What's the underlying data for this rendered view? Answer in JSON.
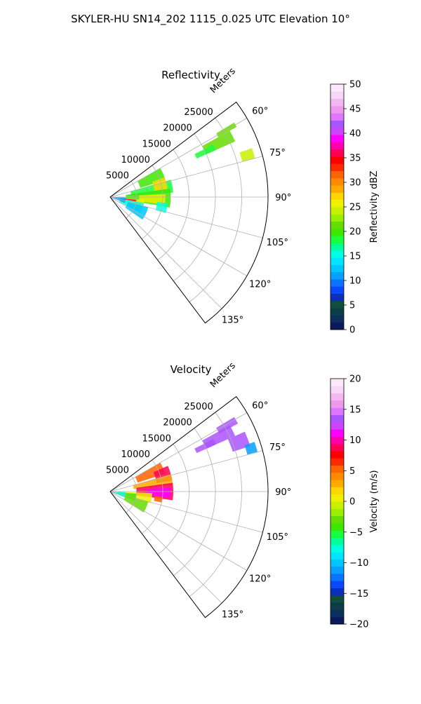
{
  "suptitle": "SKYLER-HU  SN14_202  1115_0.025 UTC Elevation 10°",
  "chart_data": [
    {
      "type": "heatmap",
      "projection": "polar-sector",
      "title": "Reflectivity",
      "radial_label": "Meters",
      "radial_ticks": [
        "5000",
        "10000",
        "15000",
        "20000",
        "25000"
      ],
      "radial_tick_values": [
        5000,
        10000,
        15000,
        20000,
        25000
      ],
      "rlim": [
        0,
        30000
      ],
      "angle_ticks": [
        "60°",
        "75°",
        "90°",
        "105°",
        "120°",
        "135°"
      ],
      "angle_tick_values": [
        60,
        75,
        90,
        105,
        120,
        135
      ],
      "theta_range": [
        53,
        143
      ],
      "grid": true,
      "colorbar": {
        "label": "Reflectivity dBZ",
        "vmin": 0,
        "vmax": 50,
        "ticks": [
          "0",
          "5",
          "10",
          "15",
          "20",
          "25",
          "30",
          "35",
          "40",
          "45",
          "50"
        ],
        "tick_values": [
          0,
          5,
          10,
          15,
          20,
          25,
          30,
          35,
          40,
          45,
          50
        ],
        "palette": [
          "#0a1a5a",
          "#0b2f5f",
          "#0d3d46",
          "#114e3c",
          "#0b2fb8",
          "#0a48ff",
          "#0a74ff",
          "#06a0ff",
          "#00c6ff",
          "#00e6ff",
          "#00ffe0",
          "#00ff9a",
          "#1aff3c",
          "#3ee600",
          "#66dd00",
          "#9aee00",
          "#c8f000",
          "#f0f000",
          "#ffd700",
          "#ffaa00",
          "#ff8a00",
          "#ff6200",
          "#ff2a00",
          "#ff0000",
          "#ff0055",
          "#ff00aa",
          "#ff00ff",
          "#cc44ff",
          "#aa55ff",
          "#dd77ff",
          "#ee99ee",
          "#f2b8f2",
          "#f7d6f7",
          "#fde8fd"
        ]
      },
      "echo_regions": [
        {
          "theta": [
            61,
            66
          ],
          "r": [
            20000,
            26000
          ],
          "value": 21
        },
        {
          "theta": [
            63,
            66
          ],
          "r": [
            18000,
            22000
          ],
          "value": 18
        },
        {
          "theta": [
            59,
            61
          ],
          "r": [
            23500,
            27500
          ],
          "value": 22
        },
        {
          "theta": [
            71,
            75
          ],
          "r": [
            26000,
            28500
          ],
          "value": 24
        },
        {
          "theta": [
            60,
            73
          ],
          "r": [
            6000,
            11000
          ],
          "value": 20
        },
        {
          "theta": [
            74,
            86
          ],
          "r": [
            4000,
            12000
          ],
          "value": 18
        },
        {
          "theta": [
            70,
            82
          ],
          "r": [
            8500,
            11000
          ],
          "value": 27
        },
        {
          "theta": [
            82,
            100
          ],
          "r": [
            3000,
            11500
          ],
          "value": 20
        },
        {
          "theta": [
            87,
            98
          ],
          "r": [
            5500,
            10500
          ],
          "value": 26
        },
        {
          "theta": [
            95,
            105
          ],
          "r": [
            2000,
            6500
          ],
          "value": 25
        },
        {
          "theta": [
            96,
            100
          ],
          "r": [
            2500,
            5000
          ],
          "value": 36
        },
        {
          "theta": [
            100,
            118
          ],
          "r": [
            2000,
            6500
          ],
          "value": 15
        },
        {
          "theta": [
            105,
            125
          ],
          "r": [
            3500,
            7500
          ],
          "value": 13
        },
        {
          "theta": [
            92,
            112
          ],
          "r": [
            0,
            3000
          ],
          "value": 11
        },
        {
          "theta": [
            96,
            106
          ],
          "r": [
            9000,
            11000
          ],
          "value": 15
        }
      ]
    },
    {
      "type": "heatmap",
      "projection": "polar-sector",
      "title": "Velocity",
      "radial_label": "Meters",
      "radial_ticks": [
        "5000",
        "10000",
        "15000",
        "20000",
        "25000"
      ],
      "radial_tick_values": [
        5000,
        10000,
        15000,
        20000,
        25000
      ],
      "rlim": [
        0,
        30000
      ],
      "angle_ticks": [
        "60°",
        "75°",
        "90°",
        "105°",
        "120°",
        "135°"
      ],
      "angle_tick_values": [
        60,
        75,
        90,
        105,
        120,
        135
      ],
      "theta_range": [
        53,
        143
      ],
      "grid": true,
      "colorbar": {
        "label": "Velocity (m/s)",
        "vmin": -20,
        "vmax": 20,
        "ticks": [
          "−20",
          "−15",
          "−10",
          "−5",
          "0",
          "5",
          "10",
          "15",
          "20"
        ],
        "tick_values": [
          -20,
          -15,
          -10,
          -5,
          0,
          5,
          10,
          15,
          20
        ],
        "palette": [
          "#0a1a5a",
          "#0b2f5f",
          "#0d3d46",
          "#114e3c",
          "#0b2fb8",
          "#0a48ff",
          "#0a74ff",
          "#06a0ff",
          "#00c6ff",
          "#00e6ff",
          "#00ffe0",
          "#00ff9a",
          "#1aff3c",
          "#3ee600",
          "#66dd00",
          "#9aee00",
          "#c8f000",
          "#f0f000",
          "#ffd700",
          "#ffaa00",
          "#ff8a00",
          "#ff6200",
          "#ff2a00",
          "#ff0000",
          "#ff0055",
          "#ff00aa",
          "#ff00ff",
          "#cc44ff",
          "#aa55ff",
          "#dd77ff",
          "#ee99ee",
          "#f2b8f2",
          "#f7d6f7",
          "#fde8fd"
        ]
      },
      "echo_regions": [
        {
          "theta": [
            61,
            66
          ],
          "r": [
            20000,
            26000
          ],
          "value": 13
        },
        {
          "theta": [
            63,
            66
          ],
          "r": [
            18000,
            22000
          ],
          "value": 13
        },
        {
          "theta": [
            59,
            62
          ],
          "r": [
            23500,
            27500
          ],
          "value": 14
        },
        {
          "theta": [
            66,
            72
          ],
          "r": [
            24500,
            28000
          ],
          "value": 14
        },
        {
          "theta": [
            71,
            75
          ],
          "r": [
            27000,
            29000
          ],
          "value": -11
        },
        {
          "theta": [
            60,
            72
          ],
          "r": [
            5500,
            11000
          ],
          "value": 5
        },
        {
          "theta": [
            66,
            80
          ],
          "r": [
            9000,
            12000
          ],
          "value": 9
        },
        {
          "theta": [
            74,
            84
          ],
          "r": [
            4500,
            12000
          ],
          "value": 3
        },
        {
          "theta": [
            82,
            98
          ],
          "r": [
            5000,
            12000
          ],
          "value": 9
        },
        {
          "theta": [
            86,
            96
          ],
          "r": [
            7000,
            11500
          ],
          "value": 11
        },
        {
          "theta": [
            92,
            106
          ],
          "r": [
            3000,
            8000
          ],
          "value": 1
        },
        {
          "theta": [
            95,
            110
          ],
          "r": [
            1500,
            5000
          ],
          "value": -4
        },
        {
          "theta": [
            105,
            122
          ],
          "r": [
            3000,
            7500
          ],
          "value": -3
        },
        {
          "theta": [
            96,
            102
          ],
          "r": [
            8500,
            10000
          ],
          "value": 5
        },
        {
          "theta": [
            92,
            112
          ],
          "r": [
            0,
            3000
          ],
          "value": -8
        }
      ]
    }
  ]
}
